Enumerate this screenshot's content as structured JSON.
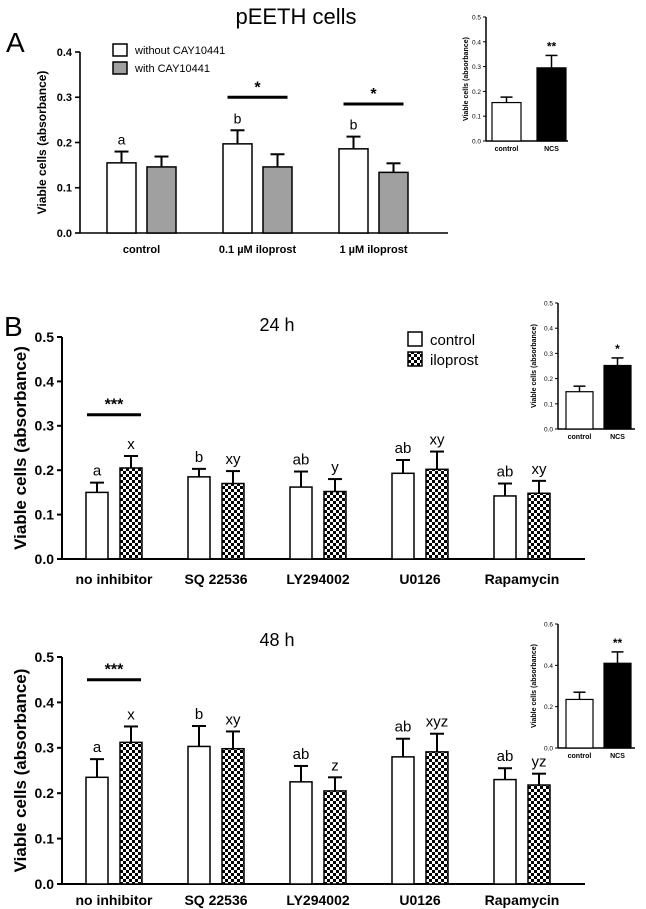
{
  "figure": {
    "title": "pEETH cells",
    "panel_a_label": "A",
    "panel_b_label": "B"
  },
  "chart_data": [
    {
      "id": "A",
      "type": "bar",
      "title": "",
      "ylabel": "Viable cells (absorbance)",
      "xlabel": "",
      "ylim": [
        0,
        0.4
      ],
      "yticks": [
        0.0,
        0.1,
        0.2,
        0.3,
        0.4
      ],
      "ytick_labels": [
        "0.0",
        "0.1",
        "0.2",
        "0.3",
        "0.4"
      ],
      "categories": [
        "control",
        "0.1 µM iloprost",
        "1 µM iloprost"
      ],
      "series": [
        {
          "name": "without CAY10441",
          "fill": "#ffffff",
          "values": [
            0.155,
            0.197,
            0.186
          ],
          "errors": [
            0.025,
            0.03,
            0.027
          ],
          "letters": [
            "a",
            "b",
            "b"
          ]
        },
        {
          "name": "with CAY10441",
          "fill": "#a0a0a0",
          "values": [
            0.146,
            0.146,
            0.134
          ],
          "errors": [
            0.023,
            0.028,
            0.02
          ],
          "letters": [
            "",
            "",
            ""
          ]
        }
      ],
      "significance": [
        {
          "category": 1,
          "label": "*",
          "y": 0.3
        },
        {
          "category": 2,
          "label": "*",
          "y": 0.285
        }
      ],
      "legend": {
        "position": "top-left",
        "entries": [
          "without CAY10441",
          "with CAY10441"
        ]
      }
    },
    {
      "id": "A-inset",
      "type": "bar",
      "ylabel": "Viable cells (absorbance)",
      "ylim": [
        0,
        0.5
      ],
      "yticks": [
        0.0,
        0.1,
        0.2,
        0.3,
        0.4,
        0.5
      ],
      "ytick_labels": [
        "0.0",
        "0.1",
        "0.2",
        "0.3",
        "0.4",
        "0.5"
      ],
      "categories": [
        "control",
        "NCS"
      ],
      "values": [
        0.155,
        0.295
      ],
      "errors": [
        0.022,
        0.05
      ],
      "fills": [
        "#ffffff",
        "#000000"
      ],
      "marks": [
        "",
        "**"
      ]
    },
    {
      "id": "B-24h",
      "type": "bar",
      "title": "24 h",
      "ylabel": "Viable cells (absorbance)",
      "ylim": [
        0,
        0.5
      ],
      "yticks": [
        0.0,
        0.1,
        0.2,
        0.3,
        0.4,
        0.5
      ],
      "ytick_labels": [
        "0.0",
        "0.1",
        "0.2",
        "0.3",
        "0.4",
        "0.5"
      ],
      "categories": [
        "no inhibitor",
        "SQ 22536",
        "LY294002",
        "U0126",
        "Rapamycin"
      ],
      "series": [
        {
          "name": "control",
          "fill": "open",
          "values": [
            0.15,
            0.185,
            0.162,
            0.193,
            0.142
          ],
          "errors": [
            0.022,
            0.018,
            0.035,
            0.03,
            0.028
          ],
          "letters": [
            "a",
            "b",
            "ab",
            "ab",
            "ab"
          ]
        },
        {
          "name": "iloprost",
          "fill": "checker",
          "values": [
            0.205,
            0.17,
            0.152,
            0.202,
            0.148
          ],
          "errors": [
            0.027,
            0.028,
            0.028,
            0.04,
            0.028
          ],
          "letters": [
            "x",
            "xy",
            "y",
            "xy",
            "xy"
          ]
        }
      ],
      "significance": [
        {
          "category": 0,
          "label": "***",
          "y": 0.325
        }
      ],
      "legend": {
        "position": "top-right",
        "entries": [
          "control",
          "iloprost"
        ]
      }
    },
    {
      "id": "B-24h-inset",
      "type": "bar",
      "ylabel": "Viable cells (absorbance)",
      "ylim": [
        0,
        0.5
      ],
      "yticks": [
        0.0,
        0.1,
        0.2,
        0.3,
        0.4,
        0.5
      ],
      "ytick_labels": [
        "0.0",
        "0.1",
        "0.2",
        "0.3",
        "0.4",
        "0.5"
      ],
      "categories": [
        "control",
        "NCS"
      ],
      "values": [
        0.148,
        0.252
      ],
      "errors": [
        0.022,
        0.03
      ],
      "fills": [
        "#ffffff",
        "#000000"
      ],
      "marks": [
        "",
        "*"
      ]
    },
    {
      "id": "B-48h",
      "type": "bar",
      "title": "48 h",
      "ylabel": "Viable cells (absorbance)",
      "ylim": [
        0,
        0.5
      ],
      "yticks": [
        0.0,
        0.1,
        0.2,
        0.3,
        0.4,
        0.5
      ],
      "ytick_labels": [
        "0.0",
        "0.1",
        "0.2",
        "0.3",
        "0.4",
        "0.5"
      ],
      "categories": [
        "no inhibitor",
        "SQ 22536",
        "LY294002",
        "U0126",
        "Rapamycin"
      ],
      "series": [
        {
          "name": "control",
          "fill": "open",
          "values": [
            0.235,
            0.303,
            0.225,
            0.28,
            0.23
          ],
          "errors": [
            0.04,
            0.045,
            0.035,
            0.04,
            0.025
          ],
          "letters": [
            "a",
            "b",
            "ab",
            "ab",
            "ab"
          ]
        },
        {
          "name": "iloprost",
          "fill": "checker",
          "values": [
            0.312,
            0.298,
            0.205,
            0.291,
            0.218
          ],
          "errors": [
            0.035,
            0.038,
            0.03,
            0.04,
            0.025
          ],
          "letters": [
            "x",
            "xy",
            "z",
            "xyz",
            "yz"
          ]
        }
      ],
      "significance": [
        {
          "category": 0,
          "label": "***",
          "y": 0.45
        }
      ]
    },
    {
      "id": "B-48h-inset",
      "type": "bar",
      "ylabel": "Viable cells (absorbance)",
      "ylim": [
        0,
        0.6
      ],
      "yticks": [
        0.0,
        0.2,
        0.4,
        0.6
      ],
      "ytick_labels": [
        "0.0",
        "0.2",
        "0.4",
        "0.6"
      ],
      "categories": [
        "control",
        "NCS"
      ],
      "values": [
        0.235,
        0.41
      ],
      "errors": [
        0.035,
        0.055
      ],
      "fills": [
        "#ffffff",
        "#000000"
      ],
      "marks": [
        "",
        "**"
      ]
    }
  ]
}
